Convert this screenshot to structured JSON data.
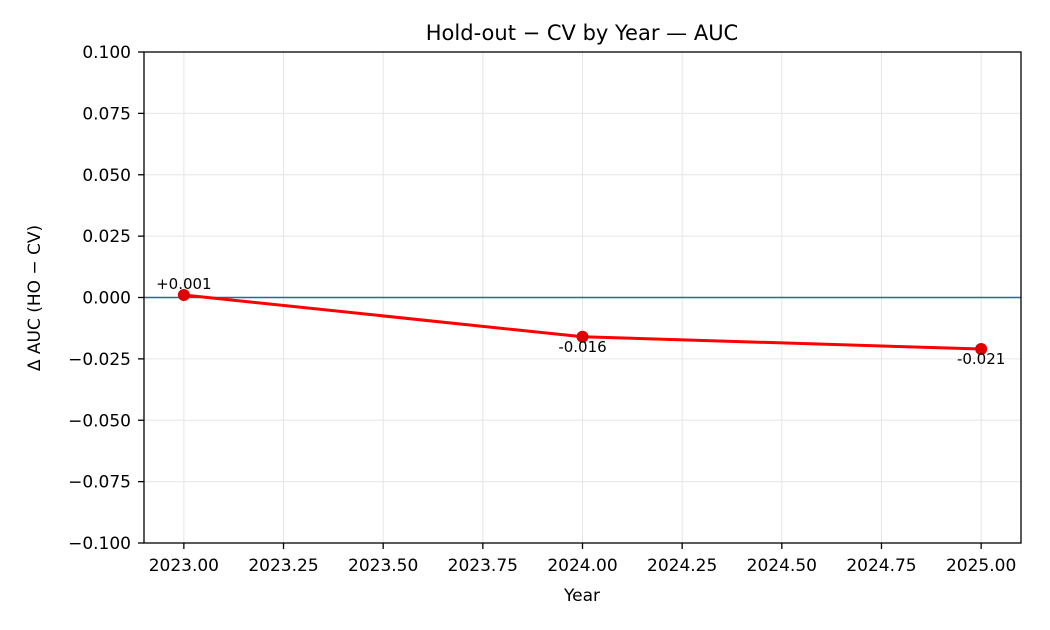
{
  "chart_data": {
    "type": "line",
    "title": "Hold-out − CV by Year — AUC",
    "xlabel": "Year",
    "ylabel": "Δ AUC (HO − CV)",
    "xlim": [
      2022.9,
      2025.1
    ],
    "ylim": [
      -0.1,
      0.1
    ],
    "x_ticks": [
      2023.0,
      2023.25,
      2023.5,
      2023.75,
      2024.0,
      2024.25,
      2024.5,
      2024.75,
      2025.0
    ],
    "x_tick_labels": [
      "2023.00",
      "2023.25",
      "2023.50",
      "2023.75",
      "2024.00",
      "2024.25",
      "2024.50",
      "2024.75",
      "2025.00"
    ],
    "y_ticks": [
      0.1,
      0.075,
      0.05,
      0.025,
      0.0,
      -0.025,
      -0.05,
      -0.075,
      -0.1
    ],
    "y_tick_labels": [
      "0.100",
      "0.075",
      "0.050",
      "0.025",
      "0.000",
      "−0.025",
      "−0.050",
      "−0.075",
      "−0.100"
    ],
    "grid": true,
    "reference_line_y": 0.0,
    "series": [
      {
        "x": [
          2023,
          2024,
          2025
        ],
        "values": [
          0.001,
          -0.016,
          -0.021
        ],
        "labels": [
          "+0.001",
          "-0.016",
          "-0.021"
        ]
      }
    ],
    "colors": {
      "series": "#ff0000",
      "marker": "#e00000",
      "reference_line": "#1f6f8b",
      "grid": "#e6e6e6",
      "axes": "#000000"
    }
  }
}
